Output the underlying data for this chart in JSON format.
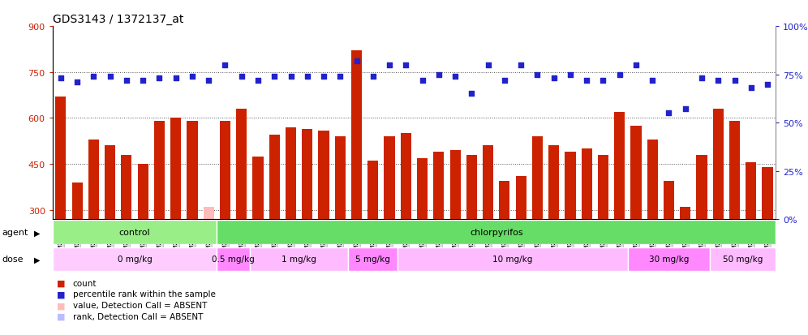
{
  "title": "GDS3143 / 1372137_at",
  "samples": [
    "GSM246129",
    "GSM246130",
    "GSM246131",
    "GSM246145",
    "GSM246146",
    "GSM246147",
    "GSM246148",
    "GSM246157",
    "GSM246158",
    "GSM246159",
    "GSM246149",
    "GSM246150",
    "GSM246151",
    "GSM246152",
    "GSM246132",
    "GSM246133",
    "GSM246134",
    "GSM246135",
    "GSM246160",
    "GSM246161",
    "GSM246162",
    "GSM246163",
    "GSM246164",
    "GSM246165",
    "GSM246166",
    "GSM246167",
    "GSM246136",
    "GSM246137",
    "GSM246138",
    "GSM246139",
    "GSM246140",
    "GSM246168",
    "GSM246169",
    "GSM246170",
    "GSM246171",
    "GSM246154",
    "GSM246155",
    "GSM246156",
    "GSM246172",
    "GSM246173",
    "GSM246141",
    "GSM246142",
    "GSM246143",
    "GSM246144"
  ],
  "bar_values": [
    670,
    390,
    530,
    510,
    480,
    450,
    590,
    600,
    590,
    310,
    590,
    630,
    475,
    545,
    570,
    565,
    560,
    540,
    820,
    460,
    540,
    550,
    470,
    490,
    495,
    480,
    510,
    395,
    410,
    540,
    510,
    490,
    500,
    480,
    620,
    575,
    530,
    395,
    310,
    480,
    630,
    590,
    455,
    440
  ],
  "dot_values": [
    73,
    71,
    74,
    74,
    72,
    72,
    73,
    73,
    74,
    72,
    80,
    74,
    72,
    74,
    74,
    74,
    74,
    74,
    82,
    74,
    80,
    80,
    72,
    75,
    74,
    65,
    80,
    72,
    80,
    75,
    73,
    75,
    72,
    72,
    75,
    80,
    72,
    55,
    57,
    73,
    72,
    72,
    68,
    70
  ],
  "absent_bar_idx": [
    9
  ],
  "absent_dot_idx": [],
  "agent_groups": [
    {
      "label": "control",
      "start": 0,
      "end": 10,
      "color": "#99ee88"
    },
    {
      "label": "chlorpyrifos",
      "start": 10,
      "end": 44,
      "color": "#66dd66"
    }
  ],
  "dose_groups": [
    {
      "label": "0 mg/kg",
      "start": 0,
      "end": 10,
      "color": "#ffccff"
    },
    {
      "label": "0.5 mg/kg",
      "start": 10,
      "end": 12,
      "color": "#ff88ff"
    },
    {
      "label": "1 mg/kg",
      "start": 12,
      "end": 18,
      "color": "#ffbbff"
    },
    {
      "label": "5 mg/kg",
      "start": 18,
      "end": 21,
      "color": "#ff88ff"
    },
    {
      "label": "10 mg/kg",
      "start": 21,
      "end": 35,
      "color": "#ffbbff"
    },
    {
      "label": "30 mg/kg",
      "start": 35,
      "end": 40,
      "color": "#ff88ff"
    },
    {
      "label": "50 mg/kg",
      "start": 40,
      "end": 44,
      "color": "#ffbbff"
    }
  ],
  "ylim_left": [
    270,
    900
  ],
  "ylim_right": [
    0,
    100
  ],
  "yticks_left": [
    300,
    450,
    600,
    750,
    900
  ],
  "yticks_right": [
    0,
    25,
    50,
    75,
    100
  ],
  "bar_color": "#cc2200",
  "dot_color": "#2222cc",
  "absent_bar_color": "#ffbbbb",
  "absent_dot_color": "#bbbbff",
  "grid_lines": [
    300,
    450,
    600,
    750
  ],
  "legend_items": [
    {
      "label": "count",
      "color": "#cc2200"
    },
    {
      "label": "percentile rank within the sample",
      "color": "#2222cc"
    },
    {
      "label": "value, Detection Call = ABSENT",
      "color": "#ffbbbb"
    },
    {
      "label": "rank, Detection Call = ABSENT",
      "color": "#bbbbff"
    }
  ]
}
